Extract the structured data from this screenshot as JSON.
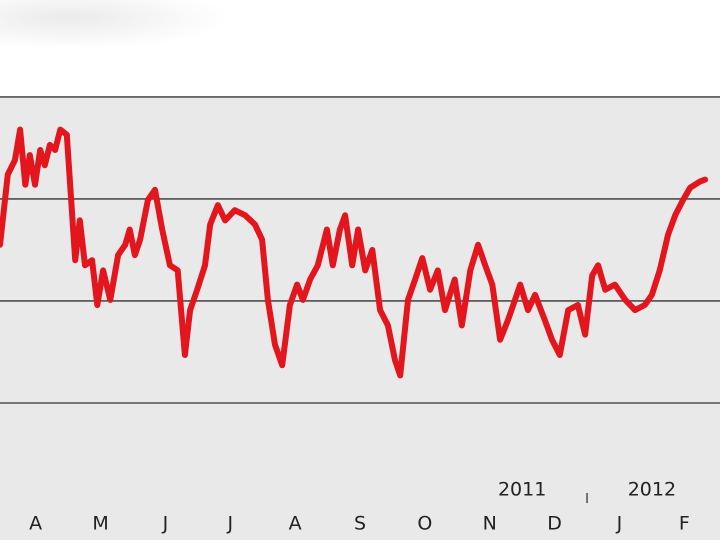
{
  "chart_data": {
    "type": "line",
    "color": "#e3161d",
    "xlim": [
      -0.55,
      10.55
    ],
    "ylim": [
      0,
      4.95
    ],
    "grid_lines": [
      1,
      2,
      3,
      4
    ],
    "xticks": [
      {
        "value": 0,
        "label": "A"
      },
      {
        "value": 1,
        "label": "M"
      },
      {
        "value": 2,
        "label": "J"
      },
      {
        "value": 3,
        "label": "J"
      },
      {
        "value": 4,
        "label": "A"
      },
      {
        "value": 5,
        "label": "S"
      },
      {
        "value": 6,
        "label": "O"
      },
      {
        "value": 7,
        "label": "N"
      },
      {
        "value": 8,
        "label": "D"
      },
      {
        "value": 9,
        "label": "J"
      },
      {
        "value": 10,
        "label": "F"
      }
    ],
    "year_labels": [
      {
        "value": 7.5,
        "label": "2011"
      },
      {
        "value": 9.5,
        "label": "2012"
      }
    ],
    "x": [
      -0.55,
      -0.43,
      -0.32,
      -0.24,
      -0.16,
      -0.09,
      -0.01,
      0.07,
      0.14,
      0.22,
      0.3,
      0.38,
      0.48,
      0.61,
      0.68,
      0.76,
      0.87,
      0.95,
      1.04,
      1.15,
      1.27,
      1.38,
      1.45,
      1.53,
      1.61,
      1.73,
      1.84,
      1.95,
      2.07,
      2.19,
      2.3,
      2.38,
      2.49,
      2.61,
      2.69,
      2.81,
      2.92,
      3.07,
      3.23,
      3.38,
      3.49,
      3.58,
      3.69,
      3.8,
      3.92,
      4.03,
      4.12,
      4.23,
      4.35,
      4.49,
      4.58,
      4.69,
      4.77,
      4.88,
      4.97,
      5.08,
      5.19,
      5.31,
      5.43,
      5.54,
      5.62,
      5.74,
      5.85,
      5.96,
      6.08,
      6.2,
      6.31,
      6.46,
      6.57,
      6.7,
      6.82,
      6.93,
      7.04,
      7.16,
      7.28,
      7.39,
      7.47,
      7.59,
      7.7,
      7.85,
      7.96,
      8.08,
      8.21,
      8.36,
      8.47,
      8.58,
      8.67,
      8.78,
      8.93,
      9.09,
      9.24,
      9.39,
      9.5,
      9.62,
      9.75,
      9.86,
      9.98,
      10.09,
      10.24,
      10.32
    ],
    "series": [
      {
        "values": [
          2.55,
          3.24,
          3.38,
          3.68,
          3.14,
          3.43,
          3.14,
          3.48,
          3.33,
          3.53,
          3.48,
          3.68,
          3.63,
          2.4,
          2.79,
          2.35,
          2.4,
          1.96,
          2.3,
          2.01,
          2.45,
          2.55,
          2.7,
          2.45,
          2.6,
          2.99,
          3.09,
          2.7,
          2.35,
          2.3,
          1.47,
          1.91,
          2.11,
          2.35,
          2.75,
          2.94,
          2.79,
          2.89,
          2.84,
          2.75,
          2.6,
          2.01,
          1.57,
          1.37,
          1.96,
          2.16,
          2.01,
          2.21,
          2.35,
          2.7,
          2.35,
          2.7,
          2.84,
          2.35,
          2.7,
          2.3,
          2.5,
          1.91,
          1.76,
          1.42,
          1.27,
          2.01,
          2.21,
          2.42,
          2.11,
          2.3,
          1.91,
          2.21,
          1.76,
          2.3,
          2.55,
          2.35,
          2.16,
          1.62,
          1.81,
          2.01,
          2.16,
          1.91,
          2.06,
          1.81,
          1.62,
          1.47,
          1.91,
          1.96,
          1.67,
          2.25,
          2.35,
          2.11,
          2.16,
          2.01,
          1.91,
          1.96,
          2.06,
          2.3,
          2.65,
          2.84,
          2.99,
          3.11,
          3.17,
          3.19
        ]
      }
    ]
  }
}
